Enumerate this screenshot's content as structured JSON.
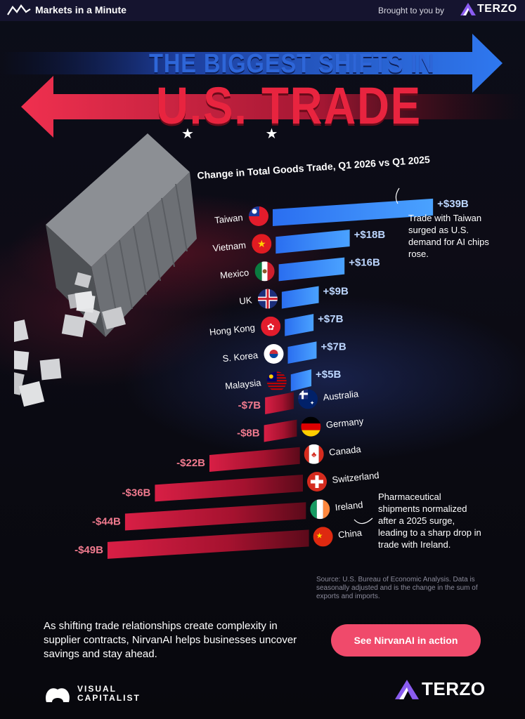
{
  "header": {
    "brand": "Markets in a Minute",
    "sponsor_text": "Brought to you by",
    "sponsor_name": "TERZO"
  },
  "title": {
    "line1": "THE BIGGEST SHIFTS IN",
    "line2": "U.S. TRADE",
    "stars": "★ ★"
  },
  "chart_data": {
    "type": "bar",
    "title": "Change in Total Goods Trade, Q1 2026 vs Q1 2025",
    "unit": "$B",
    "categories": [
      "Taiwan",
      "Vietnam",
      "Mexico",
      "UK",
      "Hong Kong",
      "S. Korea",
      "Malaysia",
      "Australia",
      "Germany",
      "Canada",
      "Switzerland",
      "Ireland",
      "China"
    ],
    "values": [
      39,
      18,
      16,
      9,
      7,
      7,
      5,
      -7,
      -8,
      -22,
      -36,
      -44,
      -49
    ],
    "value_labels": [
      "+$39B",
      "+$18B",
      "+$16B",
      "+$9B",
      "+$7B",
      "+$7B",
      "+$5B",
      "-$7B",
      "-$8B",
      "-$22B",
      "-$36B",
      "-$44B",
      "-$49B"
    ],
    "colors": {
      "positive": "#3d8cf5",
      "negative": "#e0294c"
    }
  },
  "notes": {
    "taiwan": "Trade with Taiwan surged as U.S. demand for AI chips rose.",
    "ireland": "Pharmaceutical shipments normalized after a 2025 surge, leading to a sharp drop in trade with Ireland."
  },
  "source": "Source: U.S. Bureau of Economic Analysis. Data is seasonally adjusted and is the change in the sum of exports and imports.",
  "footer": {
    "text": "As shifting trade relationships create complexity in supplier contracts, NirvanAI helps businesses uncover savings and stay ahead.",
    "cta": "See NirvanAI in action",
    "logo_left": "VISUAL CAPITALIST",
    "logo_right": "TERZO"
  },
  "colors": {
    "accent_red": "#e8243f",
    "accent_blue": "#2e66d8",
    "cta": "#f04a6b",
    "bar_blue": "#3d8cf5",
    "bar_red": "#e0294c"
  }
}
